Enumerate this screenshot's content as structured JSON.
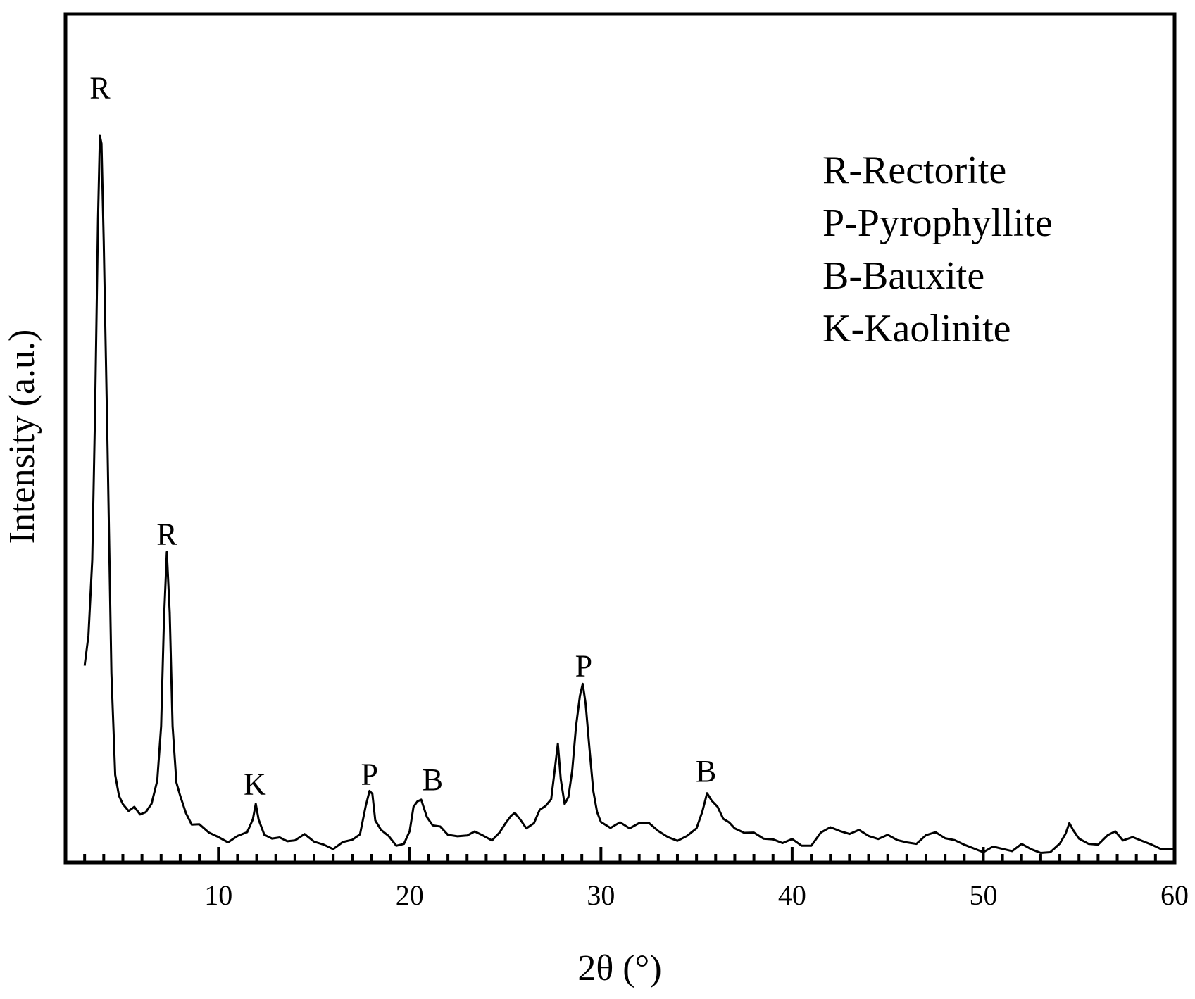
{
  "chart_data": {
    "type": "line",
    "title": "",
    "xlabel": "2θ (°)",
    "ylabel": "Intensity (a.u.)",
    "xlim": [
      2.0,
      60.0
    ],
    "ylim": [
      0,
      100
    ],
    "x_ticks": [
      10,
      20,
      30,
      40,
      50,
      60
    ],
    "x_tick_labels": [
      "10",
      "20",
      "30",
      "40",
      "50",
      "60"
    ],
    "y_ticks_shown": false,
    "grid": false,
    "legend_position": "top-right",
    "line_color": "#000000",
    "legend_entries": [
      "R-Rectorite",
      "P-Pyrophyllite",
      "B-Bauxite",
      "K-Kaolinite"
    ],
    "peak_annotations": [
      {
        "label": "R",
        "x": 3.8,
        "y": 101
      },
      {
        "label": "R",
        "x": 7.3,
        "y": 42
      },
      {
        "label": "K",
        "x": 11.9,
        "y": 9.0
      },
      {
        "label": "P",
        "x": 17.9,
        "y": 10.3
      },
      {
        "label": "B",
        "x": 21.2,
        "y": 9.6
      },
      {
        "label": "P",
        "x": 29.1,
        "y": 24.6
      },
      {
        "label": "B",
        "x": 35.5,
        "y": 10.7
      }
    ],
    "series": [
      {
        "points": [
          [
            3.0,
            26.0
          ],
          [
            3.2,
            30.0
          ],
          [
            3.4,
            40.0
          ],
          [
            3.55,
            60.0
          ],
          [
            3.7,
            85.0
          ],
          [
            3.8,
            96.0
          ],
          [
            3.88,
            95.0
          ],
          [
            4.0,
            82.0
          ],
          [
            4.2,
            55.0
          ],
          [
            4.4,
            25.0
          ],
          [
            4.6,
            12.0
          ],
          [
            4.8,
            8.5
          ],
          [
            5.0,
            7.7
          ],
          [
            5.3,
            7.1
          ],
          [
            5.6,
            6.9
          ],
          [
            5.9,
            6.2
          ],
          [
            6.2,
            6.8
          ],
          [
            6.5,
            8.2
          ],
          [
            6.8,
            10.5
          ],
          [
            7.0,
            18.0
          ],
          [
            7.15,
            32.0
          ],
          [
            7.3,
            41.0
          ],
          [
            7.45,
            33.0
          ],
          [
            7.6,
            18.0
          ],
          [
            7.8,
            11.0
          ],
          [
            8.0,
            8.5
          ],
          [
            8.3,
            6.5
          ],
          [
            8.6,
            5.3
          ],
          [
            9.0,
            4.6
          ],
          [
            9.5,
            3.8
          ],
          [
            10.0,
            3.5
          ],
          [
            10.5,
            3.1
          ],
          [
            11.0,
            3.2
          ],
          [
            11.5,
            4.0
          ],
          [
            11.8,
            6.0
          ],
          [
            11.95,
            7.3
          ],
          [
            12.1,
            5.5
          ],
          [
            12.4,
            3.8
          ],
          [
            12.8,
            3.6
          ],
          [
            13.2,
            3.0
          ],
          [
            13.6,
            2.8
          ],
          [
            14.0,
            3.2
          ],
          [
            14.5,
            3.3
          ],
          [
            15.0,
            2.6
          ],
          [
            15.5,
            2.5
          ],
          [
            16.0,
            2.2
          ],
          [
            16.5,
            2.4
          ],
          [
            17.0,
            3.0
          ],
          [
            17.4,
            4.0
          ],
          [
            17.7,
            7.0
          ],
          [
            17.9,
            9.3
          ],
          [
            18.05,
            9.2
          ],
          [
            18.2,
            6.0
          ],
          [
            18.5,
            4.0
          ],
          [
            18.9,
            3.5
          ],
          [
            19.3,
            2.5
          ],
          [
            19.7,
            2.0
          ],
          [
            20.0,
            4.0
          ],
          [
            20.2,
            7.5
          ],
          [
            20.4,
            8.5
          ],
          [
            20.6,
            8.0
          ],
          [
            20.9,
            6.0
          ],
          [
            21.2,
            5.2
          ],
          [
            21.6,
            4.3
          ],
          [
            22.0,
            3.5
          ],
          [
            22.5,
            3.6
          ],
          [
            23.0,
            4.0
          ],
          [
            23.4,
            3.8
          ],
          [
            23.8,
            3.6
          ],
          [
            24.3,
            3.2
          ],
          [
            24.7,
            3.5
          ],
          [
            25.0,
            5.0
          ],
          [
            25.3,
            6.3
          ],
          [
            25.5,
            7.0
          ],
          [
            25.8,
            5.3
          ],
          [
            26.1,
            4.5
          ],
          [
            26.5,
            5.5
          ],
          [
            26.8,
            6.5
          ],
          [
            27.1,
            7.3
          ],
          [
            27.4,
            8.5
          ],
          [
            27.6,
            13.0
          ],
          [
            27.75,
            15.7
          ],
          [
            27.9,
            11.0
          ],
          [
            28.1,
            8.0
          ],
          [
            28.3,
            8.2
          ],
          [
            28.5,
            12.0
          ],
          [
            28.7,
            18.0
          ],
          [
            28.9,
            22.0
          ],
          [
            29.05,
            23.6
          ],
          [
            29.2,
            21.0
          ],
          [
            29.4,
            15.0
          ],
          [
            29.6,
            9.0
          ],
          [
            29.8,
            6.5
          ],
          [
            30.0,
            5.5
          ],
          [
            30.5,
            5.0
          ],
          [
            31.0,
            5.0
          ],
          [
            31.5,
            4.5
          ],
          [
            32.0,
            5.5
          ],
          [
            32.5,
            4.8
          ],
          [
            33.0,
            4.0
          ],
          [
            33.5,
            3.5
          ],
          [
            34.0,
            3.3
          ],
          [
            34.5,
            3.2
          ],
          [
            35.0,
            4.5
          ],
          [
            35.3,
            7.0
          ],
          [
            35.55,
            8.7
          ],
          [
            35.8,
            8.0
          ],
          [
            36.1,
            7.5
          ],
          [
            36.4,
            6.2
          ],
          [
            36.7,
            5.0
          ],
          [
            37.0,
            4.5
          ],
          [
            37.5,
            4.2
          ],
          [
            38.0,
            3.5
          ],
          [
            38.5,
            3.0
          ],
          [
            39.0,
            3.2
          ],
          [
            39.5,
            3.0
          ],
          [
            40.0,
            2.8
          ],
          [
            40.5,
            2.2
          ],
          [
            41.0,
            2.5
          ],
          [
            41.5,
            3.5
          ],
          [
            42.0,
            4.5
          ],
          [
            42.5,
            4.3
          ],
          [
            43.0,
            4.2
          ],
          [
            43.5,
            4.0
          ],
          [
            44.0,
            3.5
          ],
          [
            44.5,
            3.4
          ],
          [
            45.0,
            3.2
          ],
          [
            45.5,
            2.8
          ],
          [
            46.0,
            2.8
          ],
          [
            46.5,
            2.9
          ],
          [
            47.0,
            3.3
          ],
          [
            47.5,
            4.0
          ],
          [
            48.0,
            3.5
          ],
          [
            48.5,
            2.5
          ],
          [
            49.0,
            2.2
          ],
          [
            49.5,
            2.0
          ],
          [
            50.0,
            1.8
          ],
          [
            50.5,
            1.8
          ],
          [
            51.0,
            1.8
          ],
          [
            51.5,
            1.8
          ],
          [
            52.0,
            2.0
          ],
          [
            52.5,
            1.6
          ],
          [
            53.0,
            1.4
          ],
          [
            53.5,
            1.8
          ],
          [
            54.0,
            2.2
          ],
          [
            54.3,
            3.8
          ],
          [
            54.5,
            5.5
          ],
          [
            54.7,
            3.8
          ],
          [
            55.0,
            3.0
          ],
          [
            55.5,
            2.6
          ],
          [
            56.0,
            2.8
          ],
          [
            56.5,
            3.3
          ],
          [
            56.9,
            4.1
          ],
          [
            57.3,
            3.2
          ],
          [
            57.8,
            2.9
          ],
          [
            58.3,
            2.7
          ],
          [
            58.8,
            2.5
          ],
          [
            59.3,
            2.2
          ],
          [
            60.0,
            1.8
          ]
        ]
      }
    ]
  }
}
